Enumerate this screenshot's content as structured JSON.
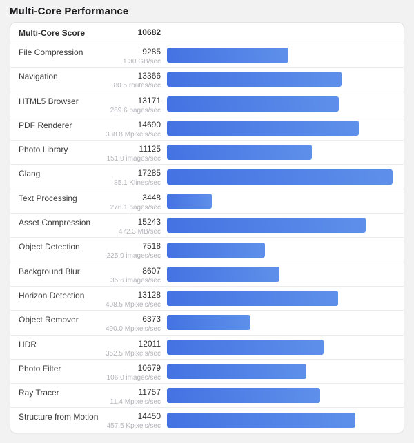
{
  "page": {
    "title": "Multi-Core Performance"
  },
  "summary": {
    "label": "Multi-Core Score",
    "score": "10682"
  },
  "chart_data": {
    "type": "bar",
    "orientation": "horizontal",
    "title": "Multi-Core Performance",
    "summary_label": "Multi-Core Score",
    "summary_score": 10682,
    "categories": [
      "File Compression",
      "Navigation",
      "HTML5 Browser",
      "PDF Renderer",
      "Photo Library",
      "Clang",
      "Text Processing",
      "Asset Compression",
      "Object Detection",
      "Background Blur",
      "Horizon Detection",
      "Object Remover",
      "HDR",
      "Photo Filter",
      "Ray Tracer",
      "Structure from Motion"
    ],
    "values": [
      9285,
      13366,
      13171,
      14690,
      11125,
      17285,
      3448,
      15243,
      7518,
      8607,
      13128,
      6373,
      12011,
      10679,
      11757,
      14450
    ],
    "units": [
      "1.30 GB/sec",
      "80.5 routes/sec",
      "269.6 pages/sec",
      "338.8 Mpixels/sec",
      "151.0 images/sec",
      "85.1 Klines/sec",
      "276.1 pages/sec",
      "472.3 MB/sec",
      "225.0 images/sec",
      "35.6 images/sec",
      "408.5 Mpixels/sec",
      "490.0 Mpixels/sec",
      "352.5 Mpixels/sec",
      "106.0 images/sec",
      "11.4 Mpixels/sec",
      "457.5 Kpixels/sec"
    ],
    "xlim": [
      0,
      17285
    ],
    "bar_scale_max": 17285,
    "grid": false,
    "legend": "none",
    "bar_color_start": "#4472e2",
    "bar_color_end": "#5e90ea"
  }
}
